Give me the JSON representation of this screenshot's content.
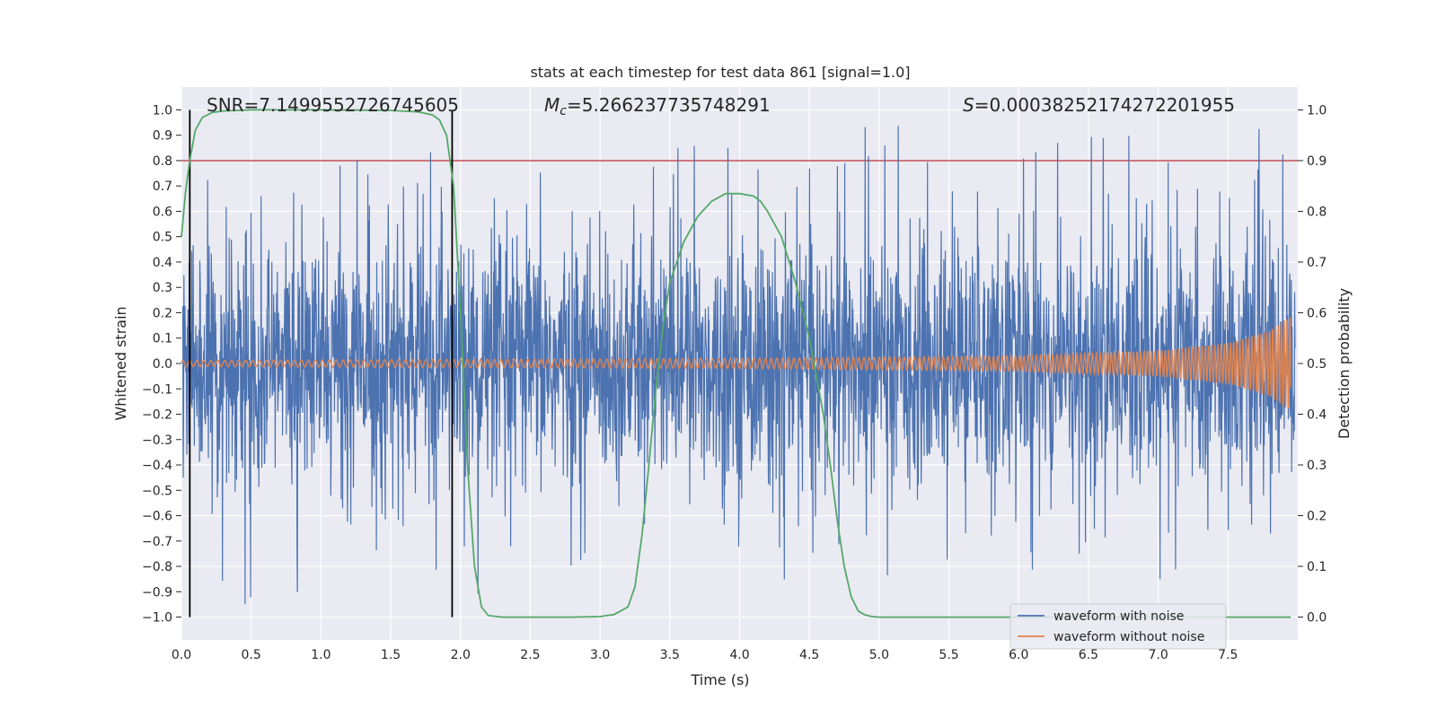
{
  "chart_data": {
    "type": "line",
    "title": "stats at each timestep for test data 861 [signal=1.0]",
    "xlabel": "Time (s)",
    "ylabel_left": "Whitened strain",
    "ylabel_right": "Detection probability",
    "xlim": [
      0.0,
      8.0
    ],
    "ylim_left": [
      -1.09,
      1.09
    ],
    "ylim_right": [
      -0.045,
      1.045
    ],
    "x_ticks": [
      "0.0",
      "0.5",
      "1.0",
      "1.5",
      "2.0",
      "2.5",
      "3.0",
      "3.5",
      "4.0",
      "4.5",
      "5.0",
      "5.5",
      "6.0",
      "6.5",
      "7.0",
      "7.5"
    ],
    "y_left_ticks": [
      "1.0",
      "0.9",
      "0.8",
      "0.7",
      "0.6",
      "0.5",
      "0.4",
      "0.3",
      "0.2",
      "0.1",
      "0.0",
      "−0.1",
      "−0.2",
      "−0.3",
      "−0.4",
      "−0.5",
      "−0.6",
      "−0.7",
      "−0.8",
      "−0.9",
      "−1.0"
    ],
    "y_right_ticks": [
      "1.0",
      "0.9",
      "0.8",
      "0.7",
      "0.6",
      "0.5",
      "0.4",
      "0.3",
      "0.2",
      "0.1",
      "0.0"
    ],
    "grid": true,
    "annotations": {
      "snr": "SNR=7.1499552726745605",
      "mc_symbol": "M",
      "mc_sub": "c",
      "mc_value": "=5.266237735748291",
      "s_symbol": "S",
      "s_value": "=0.00038252174272201955"
    },
    "threshold_line": {
      "axis": "right",
      "value": 0.9,
      "color": "#c44e52"
    },
    "vertical_markers": [
      0.06,
      1.94
    ],
    "legend": {
      "position": "lower-right",
      "entries": [
        "waveform with noise",
        "waveform without noise"
      ]
    },
    "series": [
      {
        "name": "waveform with noise",
        "axis": "left",
        "color": "#4c72b0",
        "description": "whitened noisy strain, dense oscillation with amplitude mostly within ±0.6 and spikes up to ±0.95"
      },
      {
        "name": "waveform without noise",
        "axis": "left",
        "color": "#dd8452",
        "envelope": {
          "x": [
            0.0,
            4.0,
            6.0,
            7.0,
            7.5,
            7.8,
            7.95
          ],
          "amp": [
            0.012,
            0.02,
            0.03,
            0.05,
            0.08,
            0.13,
            0.19
          ]
        }
      },
      {
        "name": "detection probability",
        "axis": "right",
        "color": "#55a868",
        "x": [
          0.0,
          0.03,
          0.06,
          0.1,
          0.15,
          0.22,
          0.3,
          0.4,
          0.5,
          0.7,
          1.0,
          1.5,
          1.7,
          1.8,
          1.85,
          1.9,
          1.95,
          2.0,
          2.05,
          2.1,
          2.15,
          2.2,
          2.3,
          2.5,
          2.8,
          3.0,
          3.1,
          3.2,
          3.25,
          3.3,
          3.35,
          3.4,
          3.45,
          3.5,
          3.6,
          3.7,
          3.8,
          3.9,
          4.0,
          4.1,
          4.15,
          4.2,
          4.3,
          4.4,
          4.5,
          4.6,
          4.65,
          4.7,
          4.75,
          4.8,
          4.85,
          4.9,
          4.95,
          5.0,
          5.2,
          5.5,
          6.0,
          6.5,
          7.0,
          7.5,
          7.95
        ],
        "values": [
          0.75,
          0.84,
          0.9,
          0.96,
          0.985,
          0.995,
          0.998,
          0.999,
          1.0,
          1.0,
          1.0,
          0.999,
          0.996,
          0.99,
          0.98,
          0.95,
          0.85,
          0.6,
          0.3,
          0.1,
          0.02,
          0.003,
          0.0,
          0.0,
          0.0,
          0.001,
          0.005,
          0.02,
          0.06,
          0.16,
          0.3,
          0.45,
          0.57,
          0.66,
          0.74,
          0.79,
          0.82,
          0.835,
          0.835,
          0.83,
          0.82,
          0.8,
          0.75,
          0.66,
          0.55,
          0.4,
          0.3,
          0.19,
          0.1,
          0.04,
          0.012,
          0.004,
          0.001,
          0.0,
          0.0,
          0.0,
          0.0,
          0.0,
          0.0,
          0.0,
          0.0
        ]
      }
    ]
  }
}
